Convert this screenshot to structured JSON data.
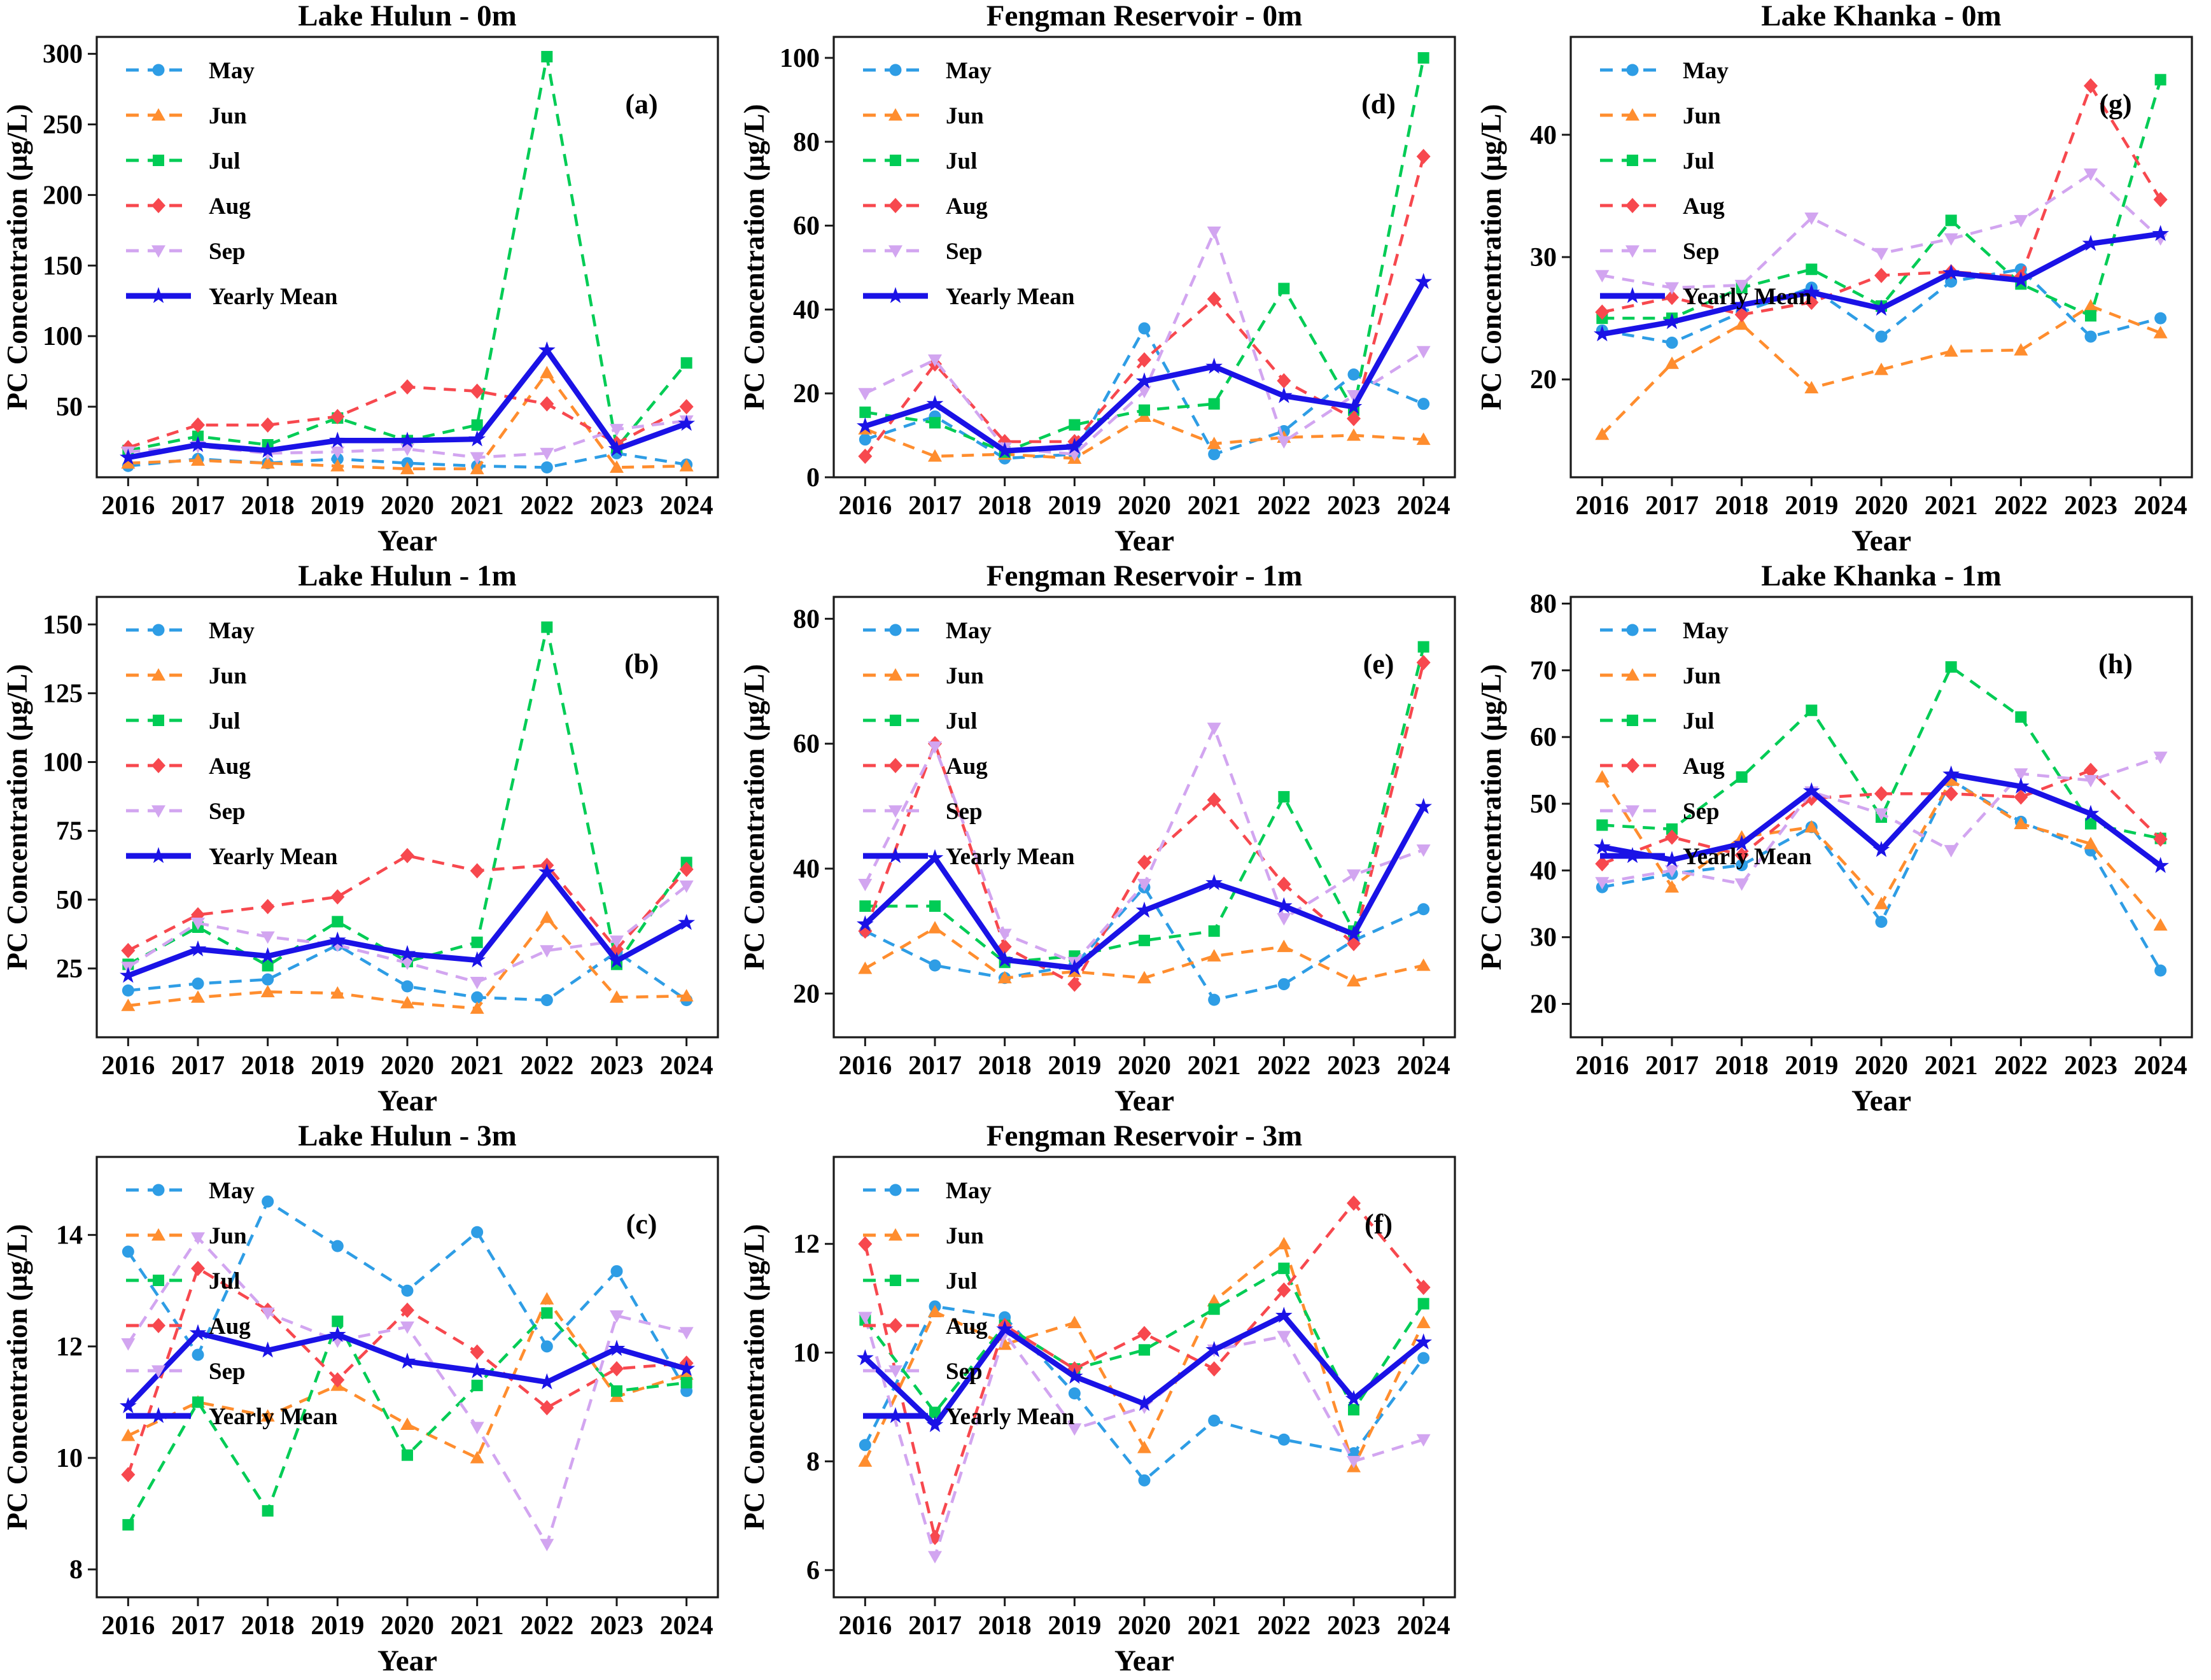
{
  "figure": {
    "description": "PC concentration time series figure with 8 subplots",
    "xlabel": "Year",
    "ylabel": "PC Concentration (µg/L)",
    "legend_labels": [
      "May",
      "Jun",
      "Jul",
      "Aug",
      "Sep",
      "Yearly Mean"
    ]
  },
  "series_styles": [
    {
      "name": "May",
      "color": "#2E9DE5",
      "marker": "circle",
      "dashed": true
    },
    {
      "name": "Jun",
      "color": "#FF8D2E",
      "marker": "triangle-up",
      "dashed": true
    },
    {
      "name": "Jul",
      "color": "#00CC55",
      "marker": "square",
      "dashed": true
    },
    {
      "name": "Aug",
      "color": "#F7484E",
      "marker": "diamond",
      "dashed": true
    },
    {
      "name": "Sep",
      "color": "#D2A5F0",
      "marker": "triangle-down",
      "dashed": true
    },
    {
      "name": "Yearly Mean",
      "color": "#1A12E6",
      "marker": "star",
      "dashed": false
    }
  ],
  "chart_data": [
    {
      "type": "line",
      "panel_label": "(a)",
      "title": "Lake Hulun - 0m",
      "xlabel": "Year",
      "ylabel": "PC Concentration (µg/L)",
      "x": [
        2016,
        2017,
        2018,
        2019,
        2020,
        2021,
        2022,
        2023,
        2024
      ],
      "ylim": [
        0,
        312
      ],
      "yticks": [
        50,
        100,
        150,
        200,
        250,
        300
      ],
      "series": [
        {
          "name": "May",
          "values": [
            8,
            13,
            10,
            13,
            10,
            8,
            7,
            17,
            9
          ]
        },
        {
          "name": "Jun",
          "values": [
            10,
            12,
            10,
            8,
            6,
            6,
            74,
            7,
            8
          ]
        },
        {
          "name": "Jul",
          "values": [
            19,
            29,
            23,
            42,
            26,
            37,
            298,
            21,
            81
          ]
        },
        {
          "name": "Aug",
          "values": [
            21,
            37,
            37,
            43,
            64,
            61,
            52,
            24,
            50
          ]
        },
        {
          "name": "Sep",
          "values": [
            18,
            22,
            17,
            18,
            20,
            14,
            17,
            34,
            40
          ]
        },
        {
          "name": "Yearly Mean",
          "values": [
            14,
            23,
            19,
            26,
            26,
            27,
            90,
            20,
            38
          ]
        }
      ]
    },
    {
      "type": "line",
      "panel_label": "(d)",
      "title": "Fengman Reservoir - 0m",
      "xlabel": "Year",
      "ylabel": "PC Concentration (µg/L)",
      "x": [
        2016,
        2017,
        2018,
        2019,
        2020,
        2021,
        2022,
        2023,
        2024
      ],
      "ylim": [
        0,
        105
      ],
      "yticks": [
        0,
        20,
        40,
        60,
        80,
        100
      ],
      "series": [
        {
          "name": "May",
          "values": [
            9,
            14.5,
            4.5,
            5.5,
            35.5,
            5.5,
            11,
            24.5,
            17.5
          ]
        },
        {
          "name": "Jun",
          "values": [
            11.5,
            5,
            5.5,
            4.5,
            14.5,
            8,
            9.5,
            10,
            9
          ]
        },
        {
          "name": "Jul",
          "values": [
            15.5,
            13,
            6,
            12.5,
            16,
            17.5,
            45,
            16,
            100
          ]
        },
        {
          "name": "Aug",
          "values": [
            5,
            27,
            8.5,
            8.5,
            28,
            42.5,
            23,
            14,
            76.5
          ]
        },
        {
          "name": "Sep",
          "values": [
            20,
            28,
            7,
            5.5,
            20.5,
            58.5,
            8.5,
            19.5,
            30
          ]
        },
        {
          "name": "Yearly Mean",
          "values": [
            12.2,
            17.5,
            6.3,
            7.3,
            22.9,
            26.4,
            19.4,
            16.8,
            46.6
          ]
        }
      ]
    },
    {
      "type": "line",
      "panel_label": "(g)",
      "title": "Lake Khanka - 0m",
      "xlabel": "Year",
      "ylabel": "PC Concentration (µg/L)",
      "x": [
        2016,
        2017,
        2018,
        2019,
        2020,
        2021,
        2022,
        2023,
        2024
      ],
      "ylim": [
        12,
        48
      ],
      "yticks": [
        20,
        30,
        40
      ],
      "series": [
        {
          "name": "May",
          "values": [
            24,
            23,
            25.5,
            27.5,
            23.5,
            28,
            29,
            23.5,
            25
          ]
        },
        {
          "name": "Jun",
          "values": [
            15.5,
            21.3,
            24.5,
            19.3,
            20.8,
            22.3,
            22.4,
            26,
            23.8
          ]
        },
        {
          "name": "Jul",
          "values": [
            25,
            25,
            27.5,
            29,
            26,
            33,
            27.8,
            25.2,
            44.5
          ]
        },
        {
          "name": "Aug",
          "values": [
            25.5,
            26.7,
            25.3,
            26.3,
            28.5,
            28.8,
            28.4,
            44,
            34.7
          ]
        },
        {
          "name": "Sep",
          "values": [
            28.5,
            27.5,
            27.7,
            33.2,
            30.3,
            31.5,
            33,
            36.8,
            31.5
          ]
        },
        {
          "name": "Yearly Mean",
          "values": [
            23.7,
            24.7,
            26.1,
            27.1,
            25.8,
            28.7,
            28.1,
            31.1,
            31.9
          ]
        }
      ]
    },
    {
      "type": "line",
      "panel_label": "(b)",
      "title": "Lake Hulun - 1m",
      "xlabel": "Year",
      "ylabel": "PC Concentration (µg/L)",
      "x": [
        2016,
        2017,
        2018,
        2019,
        2020,
        2021,
        2022,
        2023,
        2024
      ],
      "ylim": [
        0,
        160
      ],
      "yticks": [
        25,
        50,
        75,
        100,
        125,
        150
      ],
      "series": [
        {
          "name": "May",
          "values": [
            17,
            19.5,
            21,
            33.5,
            18.5,
            14.5,
            13.5,
            31,
            13.5
          ]
        },
        {
          "name": "Jun",
          "values": [
            11.5,
            14.5,
            16.5,
            16,
            12.5,
            10.5,
            43.5,
            14.5,
            15
          ]
        },
        {
          "name": "Jul",
          "values": [
            26.5,
            40,
            26,
            42,
            27.5,
            34.5,
            149,
            26.5,
            63.5
          ]
        },
        {
          "name": "Aug",
          "values": [
            31.5,
            44.5,
            47.5,
            51,
            66,
            60.5,
            62.5,
            32,
            61
          ]
        },
        {
          "name": "Sep",
          "values": [
            25.5,
            41.5,
            36.5,
            33.5,
            27,
            20,
            31.5,
            35,
            55
          ]
        },
        {
          "name": "Yearly Mean",
          "values": [
            22.4,
            32,
            29.5,
            35.2,
            30.3,
            28,
            60,
            27.8,
            41.6
          ]
        }
      ]
    },
    {
      "type": "line",
      "panel_label": "(e)",
      "title": "Fengman Reservoir - 1m",
      "xlabel": "Year",
      "ylabel": "PC Concentration (µg/L)",
      "x": [
        2016,
        2017,
        2018,
        2019,
        2020,
        2021,
        2022,
        2023,
        2024
      ],
      "ylim": [
        13,
        83.5
      ],
      "yticks": [
        20,
        40,
        60,
        80
      ],
      "series": [
        {
          "name": "May",
          "values": [
            30,
            24.5,
            22.5,
            24.5,
            37,
            19,
            21.5,
            28.5,
            33.5
          ]
        },
        {
          "name": "Jun",
          "values": [
            24,
            30.5,
            22.5,
            23.5,
            22.5,
            26,
            27.5,
            22,
            24.5
          ]
        },
        {
          "name": "Jul",
          "values": [
            34,
            34,
            25,
            26,
            28.5,
            30,
            51.5,
            30,
            75.5
          ]
        },
        {
          "name": "Aug",
          "values": [
            30,
            60,
            27.5,
            21.5,
            41,
            51,
            37.5,
            28,
            73
          ]
        },
        {
          "name": "Sep",
          "values": [
            37.5,
            59.5,
            29.5,
            25,
            37.5,
            62.5,
            32,
            39,
            43
          ]
        },
        {
          "name": "Yearly Mean",
          "values": [
            31.1,
            41.7,
            25.4,
            24.1,
            33.3,
            37.7,
            34,
            29.5,
            49.9
          ]
        }
      ]
    },
    {
      "type": "line",
      "panel_label": "(h)",
      "title": "Lake Khanka - 1m",
      "xlabel": "Year",
      "ylabel": "PC Concentration (µg/L)",
      "x": [
        2016,
        2017,
        2018,
        2019,
        2020,
        2021,
        2022,
        2023,
        2024
      ],
      "ylim": [
        15,
        81
      ],
      "yticks": [
        20,
        30,
        40,
        50,
        60,
        70,
        80
      ],
      "series": [
        {
          "name": "May",
          "values": [
            37.5,
            39.5,
            40.8,
            46.5,
            32.3,
            53.5,
            47.3,
            43,
            25
          ]
        },
        {
          "name": "Jun",
          "values": [
            54,
            37.5,
            45,
            46.5,
            35,
            53.5,
            47,
            44,
            31.8
          ]
        },
        {
          "name": "Jul",
          "values": [
            46.8,
            46.2,
            54,
            64,
            48,
            70.5,
            63,
            47,
            44.8
          ]
        },
        {
          "name": "Aug",
          "values": [
            41,
            45,
            42.3,
            50.8,
            51.5,
            51.5,
            51,
            55,
            44.7
          ]
        },
        {
          "name": "Sep",
          "values": [
            38.2,
            40,
            38,
            51.8,
            48.5,
            43,
            54.5,
            53.5,
            57
          ]
        },
        {
          "name": "Yearly Mean",
          "values": [
            43.5,
            41.6,
            44,
            51.9,
            43.1,
            54.4,
            52.6,
            48.5,
            40.7
          ]
        }
      ]
    },
    {
      "type": "line",
      "panel_label": "(c)",
      "title": "Lake Hulun - 3m",
      "xlabel": "Year",
      "ylabel": "PC Concentration (µg/L)",
      "x": [
        2016,
        2017,
        2018,
        2019,
        2020,
        2021,
        2022,
        2023,
        2024
      ],
      "ylim": [
        7.5,
        15.4
      ],
      "yticks": [
        8,
        10,
        12,
        14
      ],
      "series": [
        {
          "name": "May",
          "values": [
            13.7,
            11.85,
            14.6,
            13.8,
            13,
            14.05,
            12,
            13.35,
            11.2
          ]
        },
        {
          "name": "Jun",
          "values": [
            10.4,
            11,
            10.75,
            11.3,
            10.6,
            10,
            12.85,
            11.1,
            11.5
          ]
        },
        {
          "name": "Jul",
          "values": [
            8.8,
            11,
            9.05,
            12.45,
            10.05,
            11.3,
            12.6,
            11.2,
            11.35
          ]
        },
        {
          "name": "Aug",
          "values": [
            9.7,
            13.4,
            12.65,
            11.4,
            12.65,
            11.9,
            10.9,
            11.6,
            11.7
          ]
        },
        {
          "name": "Sep",
          "values": [
            12.05,
            13.95,
            12.6,
            12.1,
            12.35,
            10.55,
            8.45,
            12.55,
            12.25
          ]
        },
        {
          "name": "Yearly Mean",
          "values": [
            10.93,
            12.24,
            11.93,
            12.21,
            11.73,
            11.56,
            11.36,
            11.96,
            11.6
          ]
        }
      ]
    },
    {
      "type": "line",
      "panel_label": "(f)",
      "title": "Fengman Reservoir - 3m",
      "xlabel": "Year",
      "ylabel": "PC Concentration (µg/L)",
      "x": [
        2016,
        2017,
        2018,
        2019,
        2020,
        2021,
        2022,
        2023,
        2024
      ],
      "ylim": [
        5.5,
        13.6
      ],
      "yticks": [
        6,
        8,
        10,
        12
      ],
      "series": [
        {
          "name": "May",
          "values": [
            8.3,
            10.85,
            10.65,
            9.25,
            7.65,
            8.75,
            8.4,
            8.15,
            9.9
          ]
        },
        {
          "name": "Jun",
          "values": [
            8,
            10.75,
            10.15,
            10.55,
            8.25,
            10.95,
            12,
            7.9,
            10.55
          ]
        },
        {
          "name": "Jul",
          "values": [
            10.6,
            8.9,
            10.5,
            9.7,
            10.05,
            10.8,
            11.55,
            8.95,
            10.9
          ]
        },
        {
          "name": "Aug",
          "values": [
            12,
            6.6,
            10.5,
            9.7,
            10.35,
            9.7,
            11.15,
            12.75,
            11.2
          ]
        },
        {
          "name": "Sep",
          "values": [
            10.65,
            6.25,
            10.35,
            8.6,
            9,
            10.05,
            10.3,
            8,
            8.4
          ]
        },
        {
          "name": "Yearly Mean",
          "values": [
            9.9,
            8.67,
            10.43,
            9.56,
            9.06,
            10.05,
            10.68,
            9.15,
            10.19
          ]
        }
      ]
    }
  ]
}
